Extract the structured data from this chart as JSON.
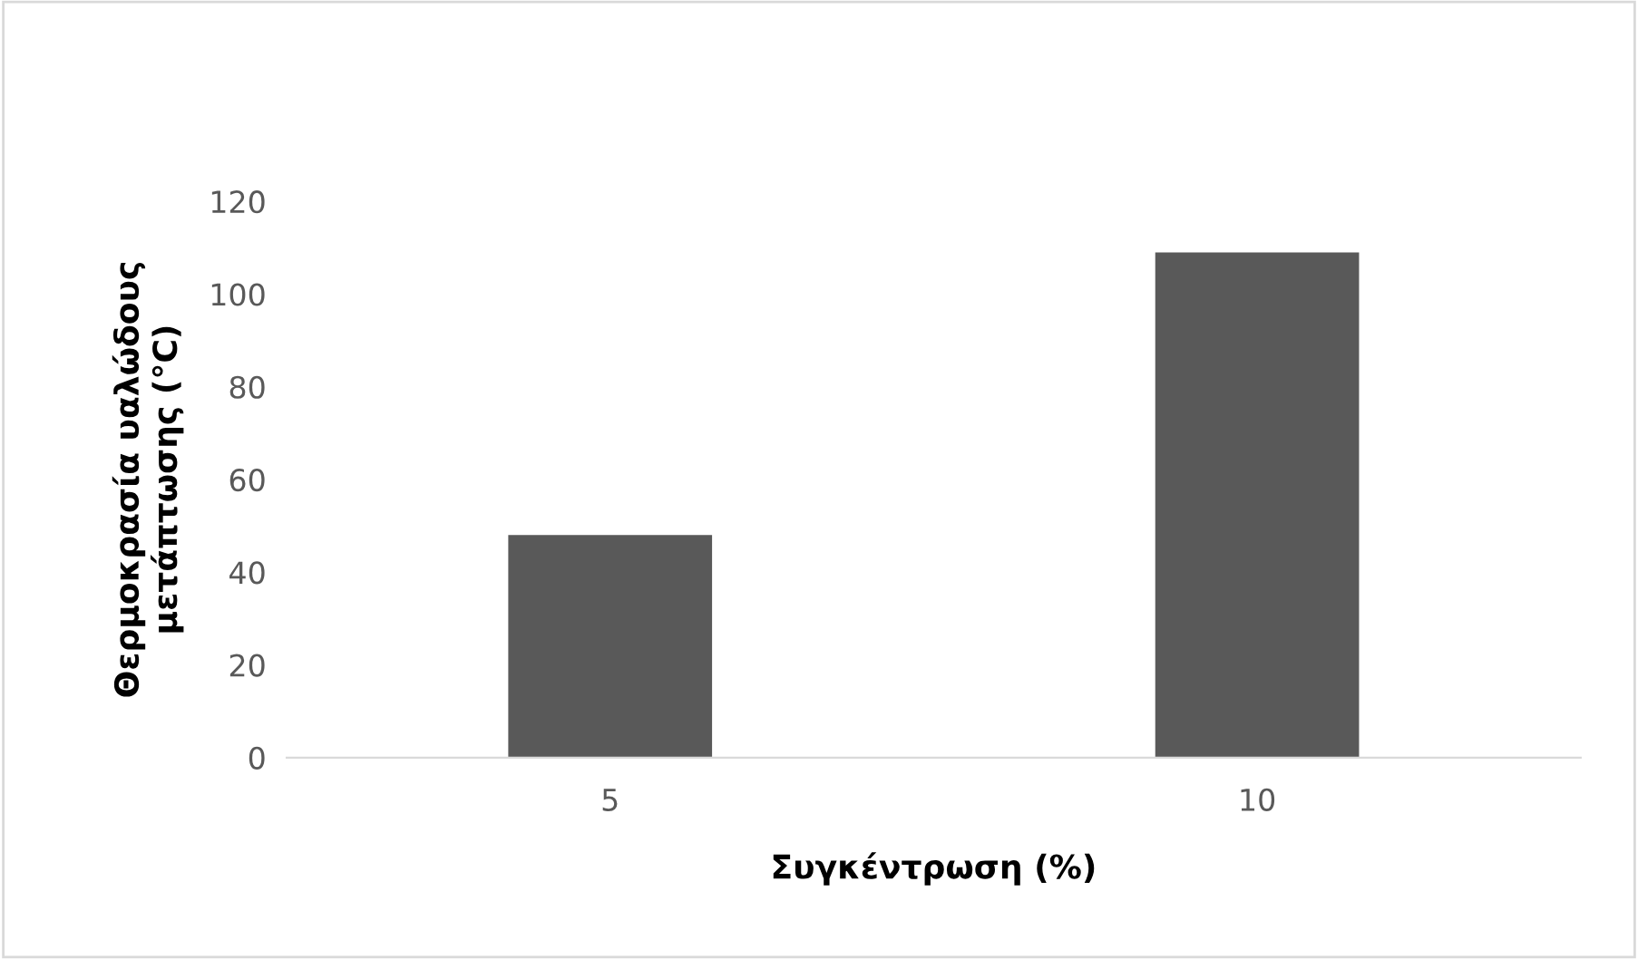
{
  "chart_data": {
    "type": "bar",
    "xlabel": "Συγκέντρωση (%)",
    "ylabel": "Θερμοκρασία υαλώδους μετάπτωσης (°C)",
    "categories": [
      "5",
      "10"
    ],
    "values": [
      48,
      109
    ],
    "color": "#595959",
    "ylim": [
      0,
      120
    ],
    "yticks": [
      0,
      20,
      40,
      60,
      80,
      100,
      120
    ],
    "grid": false,
    "legend": false
  }
}
